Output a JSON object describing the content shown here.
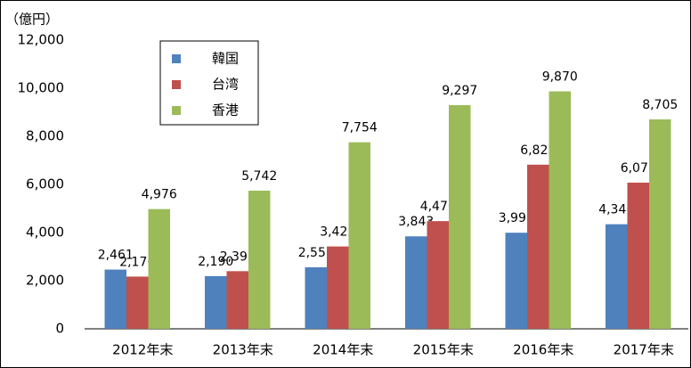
{
  "chart_data": {
    "type": "bar",
    "y_axis_label": "（億円）",
    "categories": [
      "2012年末",
      "2013年末",
      "2014年末",
      "2015年末",
      "2016年末",
      "2017年末"
    ],
    "series": [
      {
        "name": "韓国",
        "color": "#4f81bd",
        "values": [
          2461,
          2190,
          2557,
          3843,
          3993,
          4346
        ],
        "value_labels": [
          "2,461",
          "2,190",
          "2,557",
          "3,843",
          "3,993",
          "4,346"
        ]
      },
      {
        "name": "台湾",
        "color": "#c0504d",
        "values": [
          2170,
          2395,
          3422,
          4476,
          6822,
          6075
        ],
        "value_labels": [
          "2,170",
          "2,395",
          "3,422",
          "4,476",
          "6,822",
          "6,075"
        ]
      },
      {
        "name": "香港",
        "color": "#9bbb59",
        "values": [
          4976,
          5742,
          7754,
          9297,
          9870,
          8705
        ],
        "value_labels": [
          "4,976",
          "5,742",
          "7,754",
          "9,297",
          "9,870",
          "8,705"
        ]
      }
    ],
    "ylim": [
      0,
      12000
    ],
    "yticks": [
      0,
      {
        "value": 2000,
        "label": "2,000"
      },
      {
        "value": 4000,
        "label": "4,000"
      },
      {
        "value": 6000,
        "label": "6,000"
      },
      {
        "value": 8000,
        "label": "8,000"
      },
      {
        "value": 10000,
        "label": "10,000"
      },
      {
        "value": 12000,
        "label": "12,000"
      }
    ],
    "legend": "upper-left"
  }
}
